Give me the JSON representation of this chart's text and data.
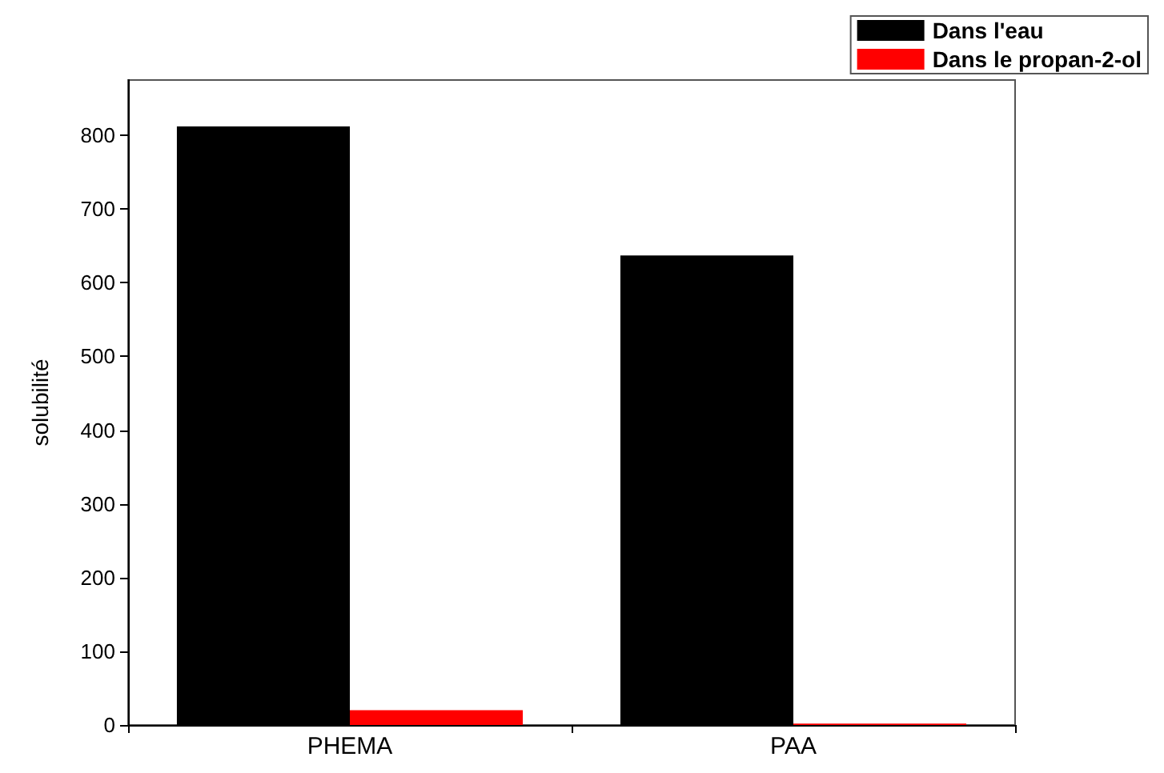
{
  "chart_data": {
    "type": "bar",
    "ylabel": "solubilité",
    "categories": [
      "PHEMA",
      "PAA"
    ],
    "series": [
      {
        "name": "Dans l'eau",
        "color": "#000000",
        "values": [
          812,
          637
        ]
      },
      {
        "name": "Dans le propan-2-ol",
        "color": "#ff0000",
        "values": [
          20,
          2
        ]
      }
    ],
    "ylim": [
      0,
      875
    ],
    "yticks": [
      0,
      100,
      200,
      300,
      400,
      500,
      600,
      700,
      800
    ],
    "grid": false,
    "legend": "top right"
  }
}
